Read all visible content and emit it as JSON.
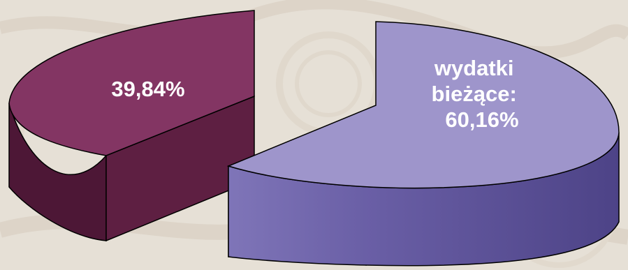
{
  "chart_data": {
    "type": "pie",
    "title": "",
    "slices": [
      {
        "value": 39.84,
        "label_lines": [
          "39,84%"
        ],
        "top_color": "#833563",
        "side_color": "#5e1f42",
        "side_color_dark": "#4d1736"
      },
      {
        "value": 60.16,
        "label_lines": [
          "wydatki",
          "bieżące:",
          "60,16%"
        ],
        "top_color": "#9e95cb",
        "side_color": "#6a5fa6",
        "side_color_dark": "#4d4387"
      }
    ],
    "style": "3d-exploded",
    "legend": "none"
  },
  "background": {
    "color": "#e6e0d6",
    "pattern_color": "#d9d0c2"
  }
}
